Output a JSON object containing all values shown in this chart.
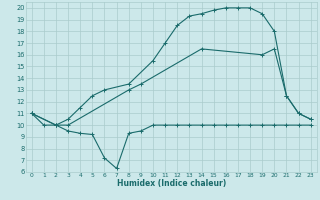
{
  "xlabel": "Humidex (Indice chaleur)",
  "bg_color": "#cce8ea",
  "grid_color": "#aacccc",
  "line_color": "#1a6b6b",
  "xlim": [
    -0.5,
    23.5
  ],
  "ylim": [
    6,
    20.5
  ],
  "xticks": [
    0,
    1,
    2,
    3,
    4,
    5,
    6,
    7,
    8,
    9,
    10,
    11,
    12,
    13,
    14,
    15,
    16,
    17,
    18,
    19,
    20,
    21,
    22,
    23
  ],
  "yticks": [
    6,
    7,
    8,
    9,
    10,
    11,
    12,
    13,
    14,
    15,
    16,
    17,
    18,
    19,
    20
  ],
  "line1_x": [
    0,
    1,
    2,
    3,
    4,
    5,
    6,
    7,
    8,
    9,
    10,
    11,
    12,
    13,
    14,
    15,
    16,
    17,
    18,
    19,
    20,
    21,
    22,
    23
  ],
  "line1_y": [
    11,
    10,
    10,
    9.5,
    9.3,
    9.2,
    7.2,
    6.3,
    9.3,
    9.5,
    10,
    10,
    10,
    10,
    10,
    10,
    10,
    10,
    10,
    10,
    10,
    10,
    10,
    10
  ],
  "line2_x": [
    0,
    2,
    3,
    8,
    9,
    14,
    19,
    20,
    21,
    22,
    23
  ],
  "line2_y": [
    11,
    10,
    10,
    13,
    13.5,
    16.5,
    16,
    16.5,
    12.5,
    11,
    10.5
  ],
  "line3_x": [
    0,
    2,
    3,
    4,
    5,
    6,
    8,
    10,
    11,
    12,
    13,
    14,
    15,
    16,
    17,
    18,
    19,
    20,
    21,
    22,
    23
  ],
  "line3_y": [
    11,
    10,
    10.5,
    11.5,
    12.5,
    13,
    13.5,
    15.5,
    17,
    18.5,
    19.3,
    19.5,
    19.8,
    20,
    20,
    20,
    19.5,
    18,
    12.5,
    11,
    10.5
  ]
}
